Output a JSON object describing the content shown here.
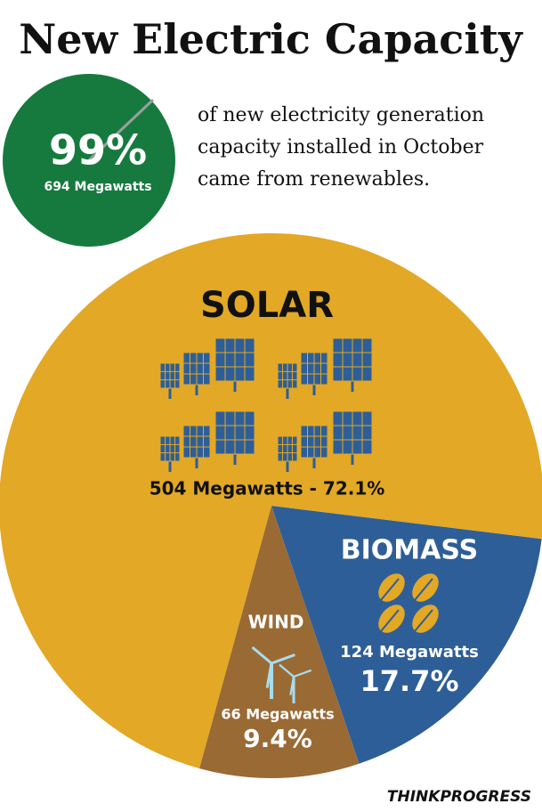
{
  "chart_data": {
    "type": "pie",
    "title": "New Electric Capacity",
    "headline": {
      "label": "99%",
      "subtitle": "694 Megawatts",
      "text": [
        "of new electricity generation",
        "capacity installed in October",
        "came from renewables."
      ]
    },
    "categories": [
      "SOLAR",
      "BIOMASS",
      "WIND"
    ],
    "values": [
      72.1,
      17.7,
      9.4
    ],
    "value_labels": [
      "504 Megawatts - 72.1%",
      "17.7%",
      "9.4%"
    ],
    "megawatt_labels": [
      null,
      "124 Megawatts",
      "66 Megawatts"
    ],
    "colors": [
      "#e2a826",
      "#2e5e97",
      "#9a6a35"
    ],
    "source": "THINKPROGRESS"
  }
}
